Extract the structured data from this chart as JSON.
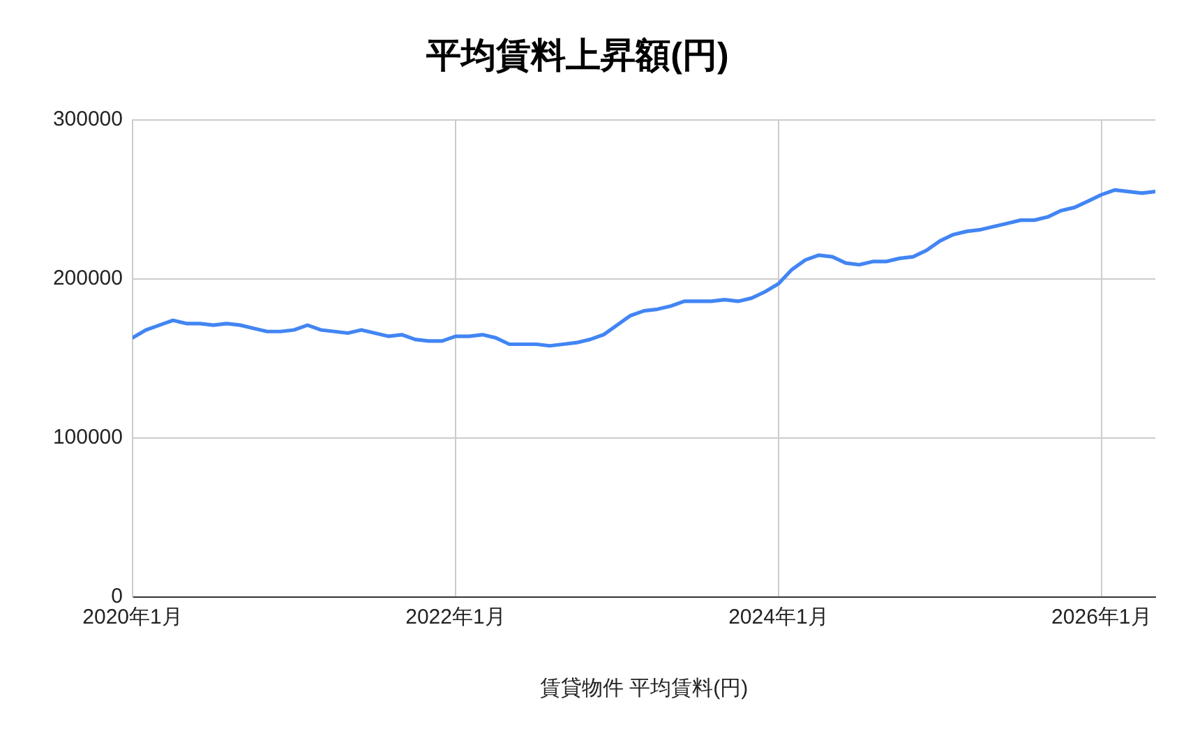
{
  "chart_data": {
    "type": "line",
    "title": "平均賃料上昇額(円)",
    "xlabel": "賃貸物件 平均賃料(円)",
    "x": [
      "2020-01",
      "2020-02",
      "2020-03",
      "2020-04",
      "2020-05",
      "2020-06",
      "2020-07",
      "2020-08",
      "2020-09",
      "2020-10",
      "2020-11",
      "2020-12",
      "2021-01",
      "2021-02",
      "2021-03",
      "2021-04",
      "2021-05",
      "2021-06",
      "2021-07",
      "2021-08",
      "2021-09",
      "2021-10",
      "2021-11",
      "2021-12",
      "2022-01",
      "2022-02",
      "2022-03",
      "2022-04",
      "2022-05",
      "2022-06",
      "2022-07",
      "2022-08",
      "2022-09",
      "2022-10",
      "2022-11",
      "2022-12",
      "2023-01",
      "2023-02",
      "2023-03",
      "2023-04",
      "2023-05",
      "2023-06",
      "2023-07",
      "2023-08",
      "2023-09",
      "2023-10",
      "2023-11",
      "2023-12",
      "2024-01",
      "2024-02",
      "2024-03",
      "2024-04",
      "2024-05",
      "2024-06",
      "2024-07",
      "2024-08",
      "2024-09",
      "2024-10",
      "2024-11",
      "2024-12",
      "2025-01",
      "2025-02",
      "2025-03",
      "2025-04",
      "2025-05",
      "2025-06",
      "2025-07",
      "2025-08",
      "2025-09",
      "2025-10",
      "2025-11",
      "2025-12",
      "2026-01",
      "2026-02",
      "2026-03",
      "2026-04",
      "2026-05"
    ],
    "series": [
      {
        "color": "#4285f4",
        "values": [
          163000,
          168000,
          171000,
          174000,
          172000,
          172000,
          171000,
          172000,
          171000,
          169000,
          167000,
          167000,
          168000,
          171000,
          168000,
          167000,
          166000,
          168000,
          166000,
          164000,
          165000,
          162000,
          161000,
          161000,
          164000,
          164000,
          165000,
          163000,
          159000,
          159000,
          159000,
          158000,
          159000,
          160000,
          162000,
          165000,
          171000,
          177000,
          180000,
          181000,
          183000,
          186000,
          186000,
          186000,
          187000,
          186000,
          188000,
          192000,
          197000,
          206000,
          212000,
          215000,
          214000,
          210000,
          209000,
          211000,
          211000,
          213000,
          214000,
          218000,
          224000,
          228000,
          230000,
          231000,
          233000,
          235000,
          237000,
          237000,
          239000,
          243000,
          245000,
          249000,
          253000,
          256000,
          255000,
          254000,
          255000
        ]
      }
    ],
    "xlim": [
      "2020-01",
      "2026-05"
    ],
    "xticks": [
      {
        "value": "2020-01",
        "label": "2020年1月"
      },
      {
        "value": "2022-01",
        "label": "2022年1月"
      },
      {
        "value": "2024-01",
        "label": "2024年1月"
      },
      {
        "value": "2026-01",
        "label": "2026年1月"
      }
    ],
    "ylim": [
      0,
      300000
    ],
    "yticks": [
      0,
      100000,
      200000,
      300000
    ],
    "grid": true,
    "legend": false
  }
}
